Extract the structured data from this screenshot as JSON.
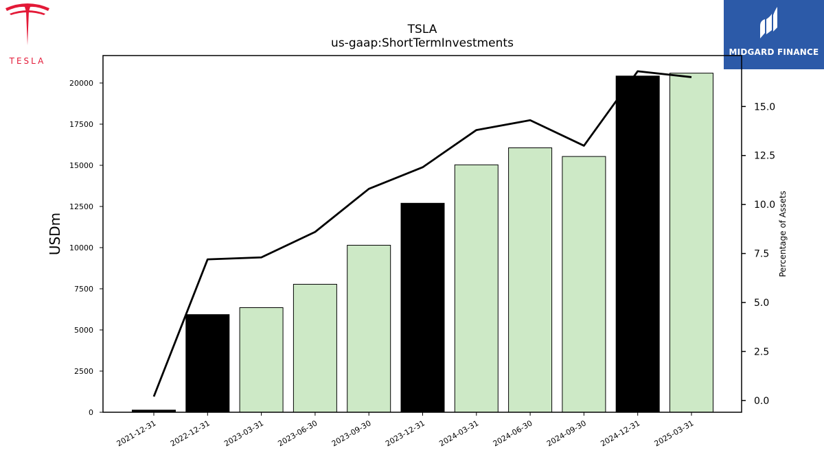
{
  "brand": {
    "left_logo_text": "TESLA",
    "right_logo_text": "MIDGARD FINANCE"
  },
  "colors": {
    "bar_black": "#000000",
    "bar_light": "#cde9c6",
    "line": "#000000",
    "tesla_red": "#e31937",
    "midgard_blue": "#2c5aa8"
  },
  "chart_data": {
    "type": "bar",
    "title": "TSLA",
    "subtitle": "us-gaap:ShortTermInvestments",
    "ylabel": "USDm",
    "y2label": "Percentage of Assets",
    "ylim": [
      0,
      21667
    ],
    "y2lim": [
      -0.6,
      17.6
    ],
    "yticks": [
      0,
      2500,
      5000,
      7500,
      10000,
      12500,
      15000,
      17500,
      20000
    ],
    "y2ticks": [
      "0.0",
      "2.5",
      "5.0",
      "7.5",
      "10.0",
      "12.5",
      "15.0"
    ],
    "categories": [
      "2021-12-31",
      "2022-12-31",
      "2023-03-31",
      "2023-06-30",
      "2023-09-30",
      "2023-12-31",
      "2024-03-31",
      "2024-06-30",
      "2024-09-30",
      "2024-12-31",
      "2025-03-31"
    ],
    "series": [
      {
        "kind": "bar",
        "values": [
          131,
          5932,
          6354,
          7774,
          10145,
          12696,
          15029,
          16062,
          15537,
          20424,
          20599
        ],
        "colors": [
          "#000000",
          "#000000",
          "#cde9c6",
          "#cde9c6",
          "#cde9c6",
          "#000000",
          "#cde9c6",
          "#cde9c6",
          "#cde9c6",
          "#000000",
          "#cde9c6"
        ]
      },
      {
        "kind": "line",
        "axis": "right",
        "values": [
          0.2,
          7.2,
          7.3,
          8.6,
          10.8,
          11.9,
          13.8,
          14.3,
          13.0,
          16.8,
          16.5
        ]
      }
    ],
    "legend": "none",
    "grid": false
  }
}
